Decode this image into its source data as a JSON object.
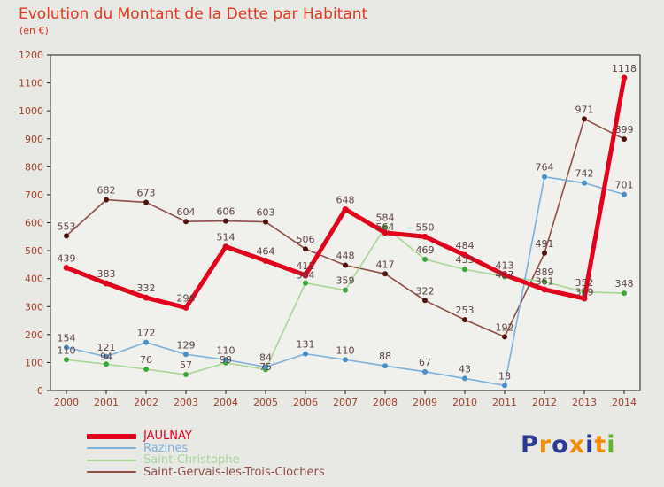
{
  "header": {
    "title": "Evolution du Montant de la Dette par Habitant",
    "subtitle": "(en €)"
  },
  "chart_data": {
    "type": "line",
    "title": "Evolution du Montant de la Dette par Habitant",
    "unit": "€ par habitant",
    "x": [
      2000,
      2001,
      2002,
      2003,
      2004,
      2005,
      2006,
      2007,
      2008,
      2009,
      2010,
      2011,
      2012,
      2013,
      2014
    ],
    "ylim": [
      0,
      1200
    ],
    "ytick_step": 100,
    "grid": false,
    "legend_position": "bottom-left",
    "axis_label_color": "#a0402a",
    "value_label_color": "#5c4343",
    "series": [
      {
        "name": "JAULNAY",
        "color": "#e2001a",
        "marker_color": "#e2001a",
        "line_width": 5,
        "values": [
          439,
          383,
          332,
          296,
          514,
          464,
          412,
          648,
          564,
          550,
          484,
          413,
          361,
          329,
          1118
        ]
      },
      {
        "name": "Razines",
        "color": "#7db1da",
        "marker_color": "#4a90c4",
        "line_width": 1.6,
        "values": [
          154,
          121,
          172,
          129,
          110,
          84,
          131,
          110,
          88,
          67,
          43,
          18,
          764,
          742,
          701
        ]
      },
      {
        "name": "Saint-Christophe",
        "color": "#a8d695",
        "marker_color": "#3ca83c",
        "line_width": 1.6,
        "values": [
          110,
          94,
          76,
          57,
          99,
          75,
          384,
          359,
          584,
          469,
          433,
          407,
          389,
          352,
          348
        ]
      },
      {
        "name": "Saint-Gervais-les-Trois-Clochers",
        "color": "#8f4e46",
        "marker_color": "#4e140e",
        "line_width": 1.6,
        "values": [
          553,
          682,
          673,
          604,
          606,
          603,
          506,
          448,
          417,
          322,
          253,
          192,
          491,
          971,
          899
        ]
      }
    ]
  },
  "logo": {
    "text": "Proxiti",
    "letters": [
      {
        "ch": "P",
        "color": "#2b3990"
      },
      {
        "ch": "r",
        "color": "#f28c00"
      },
      {
        "ch": "o",
        "color": "#2b3990"
      },
      {
        "ch": "x",
        "color": "#f28c00"
      },
      {
        "ch": "i",
        "color": "#2b3990"
      },
      {
        "ch": "t",
        "color": "#f28c00"
      },
      {
        "ch": "i",
        "color": "#63b32e"
      }
    ]
  }
}
